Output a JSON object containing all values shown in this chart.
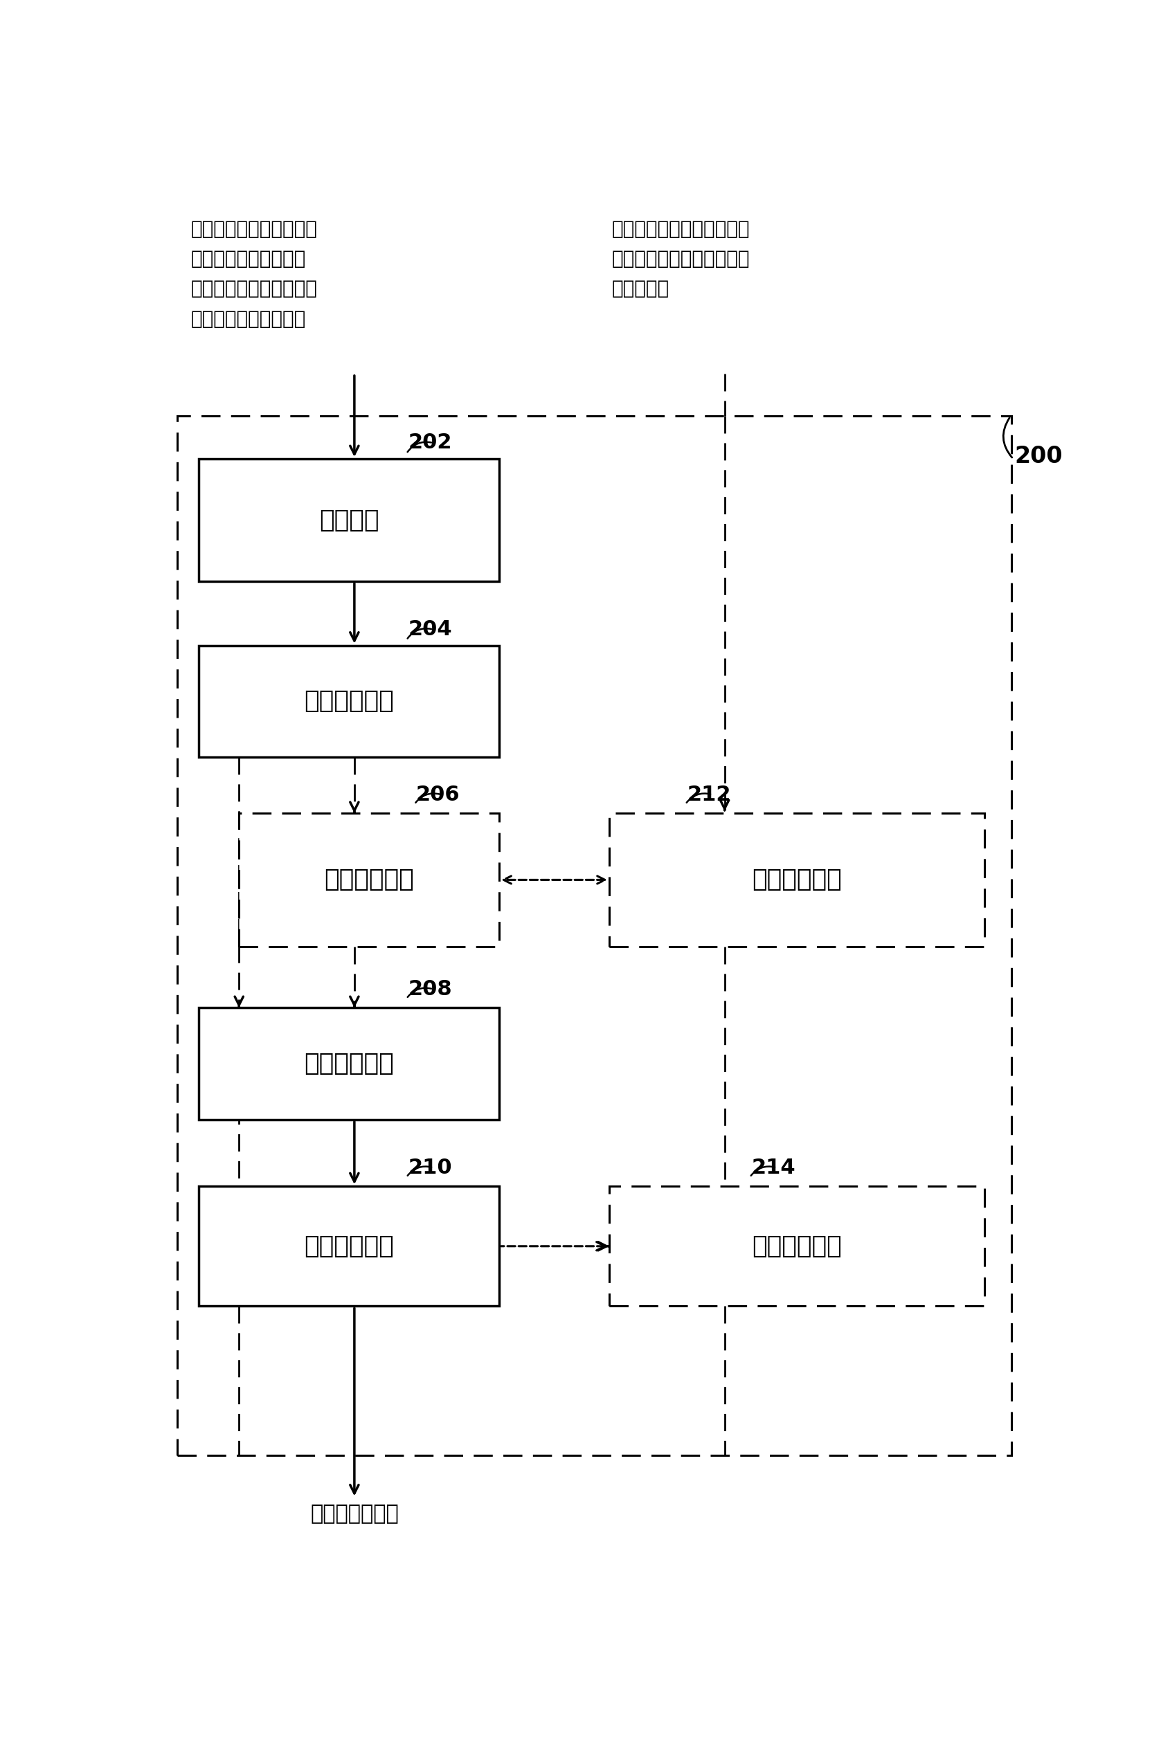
{
  "fig_width": 16.77,
  "fig_height": 25.1,
  "bg_color": "#ffffff",
  "top_label_left": "来自多个基站（例如，毫\n微微节点和干扰的宏小\n区基站）的具有参考信号\n音调和信道信息的信号",
  "top_label_right": "参考信号功率、信道分割、\n参考信号冲突、频率偏移，\n或其它参数",
  "label_202": "202",
  "label_204": "204",
  "label_206": "206",
  "label_208": "208",
  "label_210": "210",
  "label_212": "212",
  "label_214": "214",
  "label_200": "200",
  "text_202": "接收模块",
  "text_204": "干扰消除模块",
  "text_206": "音调选择模块",
  "text_208": "信道估计模块",
  "text_210": "信道解码模块",
  "text_212": "音调加权模块",
  "text_214": "干扰估计模块",
  "bottom_label": "经解码信道信息"
}
